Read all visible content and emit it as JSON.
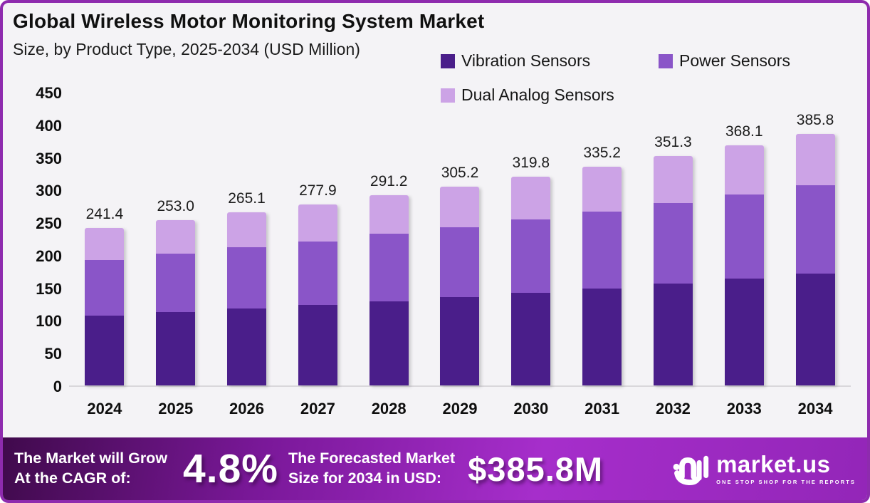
{
  "header": {
    "title": "Global Wireless Motor Monitoring System Market",
    "subtitle": "Size, by Product Type, 2025-2034 (USD Million)"
  },
  "legend": {
    "items": [
      {
        "label": "Vibration Sensors",
        "color_key": "vibration"
      },
      {
        "label": "Power Sensors",
        "color_key": "power"
      },
      {
        "label": "Dual Analog Sensors",
        "color_key": "dual"
      }
    ]
  },
  "colors": {
    "vibration": "#4A1E8A",
    "power": "#8A55C8",
    "dual": "#CCA3E6",
    "frame_border": "#8E2BAE",
    "chart_bg": "#F4F3F6",
    "axis_line": "#D9D7DB",
    "banner_gradient_start": "#400A4C",
    "banner_gradient_end": "#A62ECB",
    "banner_text": "#FFFFFF",
    "text_dark": "#101010"
  },
  "chart_data": {
    "type": "bar",
    "stacked": true,
    "title": "Global Wireless Motor Monitoring System Market",
    "subtitle": "Size, by Product Type, 2025-2034 (USD Million)",
    "xlabel": "",
    "ylabel": "USD Million",
    "ylim": [
      0,
      450
    ],
    "y_ticks": [
      450,
      400,
      350,
      300,
      250,
      200,
      150,
      100,
      50,
      0
    ],
    "grid": false,
    "legend_position": "top-right",
    "categories": [
      "2024",
      "2025",
      "2026",
      "2027",
      "2028",
      "2029",
      "2030",
      "2031",
      "2032",
      "2033",
      "2034"
    ],
    "series": [
      {
        "name": "Vibration Sensors",
        "color_key": "vibration",
        "values": [
          107.0,
          112.5,
          118.0,
          123.4,
          129.0,
          136.0,
          141.6,
          148.9,
          156.2,
          164.2,
          171.8
        ]
      },
      {
        "name": "Power Sensors",
        "color_key": "power",
        "values": [
          85.0,
          89.5,
          94.0,
          97.6,
          103.6,
          106.5,
          112.9,
          117.3,
          123.8,
          128.5,
          134.8
        ]
      },
      {
        "name": "Dual Analog Sensors",
        "color_key": "dual",
        "values": [
          49.4,
          51.0,
          53.1,
          56.9,
          58.6,
          62.7,
          65.3,
          69.0,
          71.3,
          75.4,
          79.2
        ]
      }
    ],
    "totals": [
      241.4,
      253.0,
      265.1,
      277.9,
      291.2,
      305.2,
      319.8,
      335.2,
      351.3,
      368.1,
      385.8
    ],
    "totals_display": [
      "241.4",
      "253.0",
      "265.1",
      "277.9",
      "291.2",
      "305.2",
      "319.8",
      "335.2",
      "351.3",
      "368.1",
      "385.8"
    ]
  },
  "banner": {
    "left_line1": "The Market will Grow",
    "left_line2": "At the CAGR of:",
    "cagr_value": "4.8%",
    "mid_line1": "The Forecasted Market",
    "mid_line2": "Size for 2034 in USD:",
    "market_size": "$385.8M",
    "logo_text": "market.us",
    "logo_tagline": "ONE STOP SHOP FOR THE REPORTS"
  }
}
